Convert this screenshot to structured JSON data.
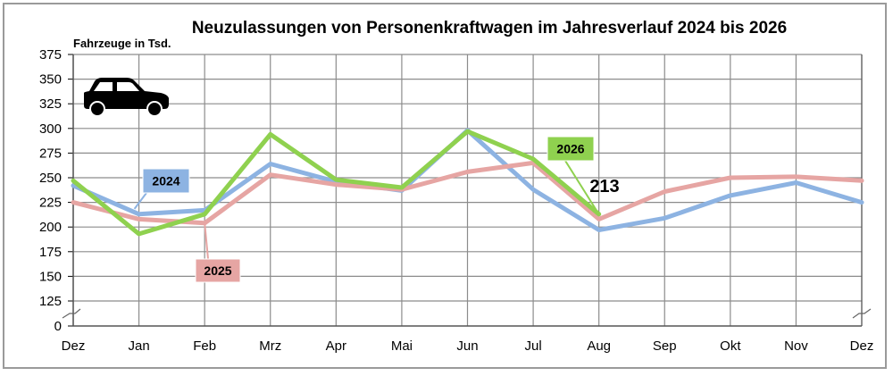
{
  "chart_data": {
    "type": "line",
    "title": "Neuzulassungen von Personenkraftwagen im Jahresverlauf 2024 bis 2026",
    "ylabel": "Fahrzeuge in Tsd.",
    "xlabel": "",
    "categories": [
      "Dez",
      "Jan",
      "Feb",
      "Mrz",
      "Apr",
      "Mai",
      "Jun",
      "Jul",
      "Aug",
      "Sep",
      "Okt",
      "Nov",
      "Dez"
    ],
    "yticks": [
      0,
      125,
      150,
      175,
      200,
      225,
      250,
      275,
      300,
      325,
      350,
      375
    ],
    "ylim": [
      0,
      375
    ],
    "axis_break": true,
    "grid": true,
    "series": [
      {
        "name": "2024",
        "color": "#8db3e2",
        "values": [
          242,
          213,
          217,
          264,
          246,
          237,
          298,
          238,
          197,
          209,
          232,
          245,
          225
        ]
      },
      {
        "name": "2025",
        "color": "#e6a5a3",
        "values": [
          225,
          208,
          204,
          253,
          243,
          238,
          256,
          265,
          208,
          236,
          250,
          251,
          247
        ]
      },
      {
        "name": "2026",
        "color": "#8fd14f",
        "values": [
          247,
          193,
          213,
          294,
          248,
          240,
          297,
          269,
          213,
          null,
          null,
          null,
          null
        ]
      }
    ],
    "annotations": [
      {
        "text": "213",
        "series": "2026",
        "category": "Aug"
      }
    ]
  },
  "icons": {
    "car": "car-icon"
  }
}
